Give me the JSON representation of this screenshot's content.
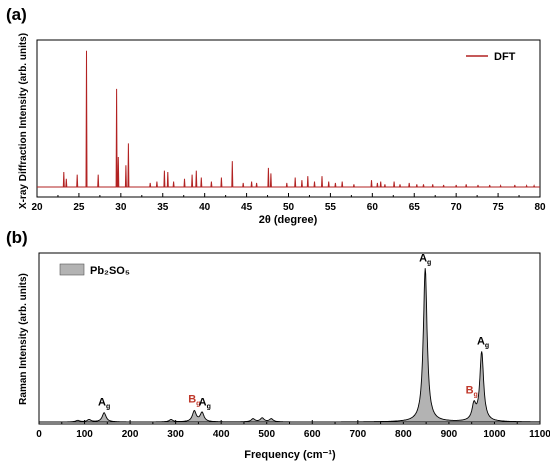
{
  "figure": {
    "panel_a_label": "(a)",
    "panel_b_label": "(b)"
  },
  "chart_data": [
    {
      "type": "line",
      "panel": "a",
      "xlabel": "2θ (degree)",
      "ylabel": "X-ray Diffraction Intensity (arb. units)",
      "xlim": [
        20,
        80
      ],
      "xticks": [
        20,
        25,
        30,
        35,
        40,
        45,
        50,
        55,
        60,
        65,
        70,
        75,
        80
      ],
      "ylim": [
        0,
        1.05
      ],
      "legend": {
        "placement": "top-right",
        "entries": [
          "DFT"
        ]
      },
      "series": [
        {
          "name": "DFT",
          "color": "#b22222",
          "peaks": [
            [
              23.2,
              0.11
            ],
            [
              23.5,
              0.06
            ],
            [
              24.8,
              0.09
            ],
            [
              25.9,
              1.0
            ],
            [
              27.3,
              0.09
            ],
            [
              29.5,
              0.72
            ],
            [
              29.7,
              0.22
            ],
            [
              30.6,
              0.16
            ],
            [
              30.9,
              0.32
            ],
            [
              33.5,
              0.03
            ],
            [
              34.3,
              0.04
            ],
            [
              35.2,
              0.12
            ],
            [
              35.6,
              0.11
            ],
            [
              36.3,
              0.04
            ],
            [
              37.6,
              0.06
            ],
            [
              38.5,
              0.09
            ],
            [
              39.0,
              0.12
            ],
            [
              39.6,
              0.07
            ],
            [
              40.8,
              0.04
            ],
            [
              42.0,
              0.07
            ],
            [
              43.3,
              0.19
            ],
            [
              44.6,
              0.03
            ],
            [
              45.6,
              0.04
            ],
            [
              46.2,
              0.03
            ],
            [
              47.6,
              0.14
            ],
            [
              47.9,
              0.1
            ],
            [
              49.8,
              0.03
            ],
            [
              50.8,
              0.07
            ],
            [
              51.6,
              0.05
            ],
            [
              52.3,
              0.08
            ],
            [
              53.1,
              0.04
            ],
            [
              54.0,
              0.08
            ],
            [
              54.8,
              0.04
            ],
            [
              55.6,
              0.03
            ],
            [
              56.4,
              0.04
            ],
            [
              57.8,
              0.02
            ],
            [
              59.9,
              0.05
            ],
            [
              60.6,
              0.03
            ],
            [
              61.0,
              0.04
            ],
            [
              61.5,
              0.02
            ],
            [
              62.6,
              0.04
            ],
            [
              63.3,
              0.02
            ],
            [
              64.4,
              0.03
            ],
            [
              65.3,
              0.02
            ],
            [
              66.1,
              0.02
            ],
            [
              67.2,
              0.02
            ],
            [
              68.5,
              0.015
            ],
            [
              70.0,
              0.015
            ],
            [
              71.2,
              0.02
            ],
            [
              72.6,
              0.015
            ],
            [
              74.0,
              0.015
            ],
            [
              75.3,
              0.01
            ],
            [
              77.0,
              0.015
            ],
            [
              78.4,
              0.01
            ],
            [
              79.3,
              0.01
            ]
          ]
        }
      ]
    },
    {
      "type": "area",
      "panel": "b",
      "xlabel": "Frequency (cm⁻¹)",
      "ylabel": "Raman Intensity (arb. units)",
      "xlim": [
        0,
        1100
      ],
      "xticks": [
        0,
        100,
        200,
        300,
        400,
        500,
        600,
        700,
        800,
        900,
        1000,
        1100
      ],
      "ylim": [
        0,
        1.1
      ],
      "legend": {
        "placement": "top-left",
        "entries": [
          "Pb₂SO₅"
        ]
      },
      "series": [
        {
          "name": "Pb₂SO₅",
          "fill": "#b3b3b3",
          "peaks": [
            {
              "x": 85,
              "y": 0.01
            },
            {
              "x": 110,
              "y": 0.015
            },
            {
              "x": 143,
              "y": 0.06
            },
            {
              "x": 290,
              "y": 0.015
            },
            {
              "x": 341,
              "y": 0.07
            },
            {
              "x": 358,
              "y": 0.06
            },
            {
              "x": 470,
              "y": 0.02
            },
            {
              "x": 490,
              "y": 0.025
            },
            {
              "x": 510,
              "y": 0.02
            },
            {
              "x": 848,
              "y": 1.0
            },
            {
              "x": 955,
              "y": 0.1
            },
            {
              "x": 972,
              "y": 0.45
            }
          ]
        }
      ],
      "annotations": [
        {
          "text": "A",
          "sub": "g",
          "x": 143,
          "y": 0.08,
          "color": "#000000"
        },
        {
          "text": "B",
          "sub": "g",
          "x": 341,
          "y": 0.1,
          "color": "#c0392b"
        },
        {
          "text": "A",
          "sub": "g",
          "x": 364,
          "y": 0.08,
          "color": "#000000"
        },
        {
          "text": "A",
          "sub": "g",
          "x": 848,
          "y": 1.02,
          "color": "#000000"
        },
        {
          "text": "B",
          "sub": "g",
          "x": 950,
          "y": 0.16,
          "color": "#c0392b"
        },
        {
          "text": "A",
          "sub": "g",
          "x": 975,
          "y": 0.48,
          "color": "#000000"
        }
      ]
    }
  ]
}
